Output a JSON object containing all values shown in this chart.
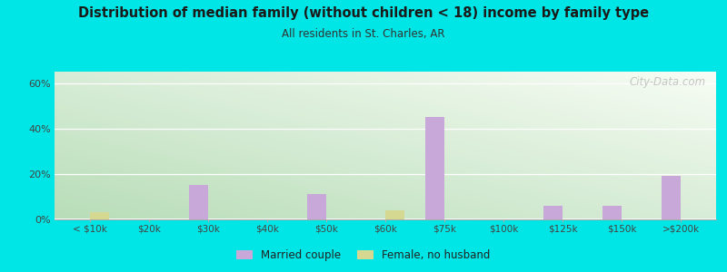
{
  "title": "Distribution of median family (without children < 18) income by family type",
  "subtitle": "All residents in St. Charles, AR",
  "categories": [
    "< $10k",
    "$20k",
    "$30k",
    "$40k",
    "$50k",
    "$60k",
    "$75k",
    "$100k",
    "$125k",
    "$150k",
    ">$200k"
  ],
  "married_couple": [
    0,
    0,
    15,
    0,
    11,
    0,
    45,
    0,
    6,
    6,
    19
  ],
  "female_no_husband": [
    3,
    0,
    0,
    0,
    0,
    4,
    0,
    0,
    0,
    0,
    0
  ],
  "married_color": "#c8a8d8",
  "female_color": "#d4d890",
  "bg_outer": "#00e5e5",
  "bg_plot_topleft": "#b8ddb8",
  "bg_plot_bottomright": "#f8fdf5",
  "title_color": "#1a1a1a",
  "subtitle_color": "#333333",
  "ylim": [
    0,
    65
  ],
  "yticks": [
    0,
    20,
    40,
    60
  ],
  "ytick_labels": [
    "0%",
    "20%",
    "40%",
    "60%"
  ],
  "bar_width": 0.32,
  "legend_married": "Married couple",
  "legend_female": "Female, no husband",
  "watermark": "City-Data.com"
}
